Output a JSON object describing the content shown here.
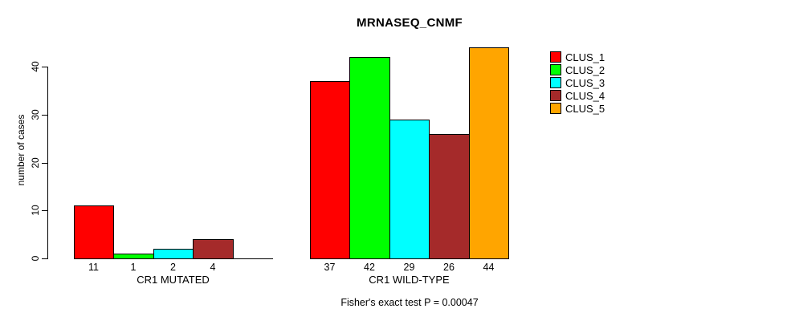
{
  "chart_data": {
    "type": "bar",
    "title": "MRNASEQ_CNMF",
    "ylabel": "number of cases",
    "xlabel": "",
    "yticks": [
      0,
      10,
      20,
      30,
      40
    ],
    "ylim": [
      0,
      44
    ],
    "grid": false,
    "legend_position": "right",
    "categories": [
      "CLUS_1",
      "CLUS_2",
      "CLUS_3",
      "CLUS_4",
      "CLUS_5"
    ],
    "series_colors": [
      "#FF0000",
      "#00FF00",
      "#00FFFF",
      "#A52A2A",
      "#FFA500"
    ],
    "groups": [
      {
        "label": "CR1 MUTATED",
        "values": [
          11,
          1,
          2,
          4,
          0
        ],
        "bar_labels": [
          "11",
          "1",
          "2",
          "4",
          ""
        ]
      },
      {
        "label": "CR1 WILD-TYPE",
        "values": [
          37,
          42,
          29,
          26,
          44
        ],
        "bar_labels": [
          "37",
          "42",
          "29",
          "26",
          "44"
        ]
      }
    ],
    "legend": [
      {
        "label": "CLUS_1",
        "color": "#FF0000"
      },
      {
        "label": "CLUS_2",
        "color": "#00FF00"
      },
      {
        "label": "CLUS_3",
        "color": "#00FFFF"
      },
      {
        "label": "CLUS_4",
        "color": "#A52A2A"
      },
      {
        "label": "CLUS_5",
        "color": "#FFA500"
      }
    ],
    "annotation": "Fisher's exact test P = 0.00047"
  }
}
